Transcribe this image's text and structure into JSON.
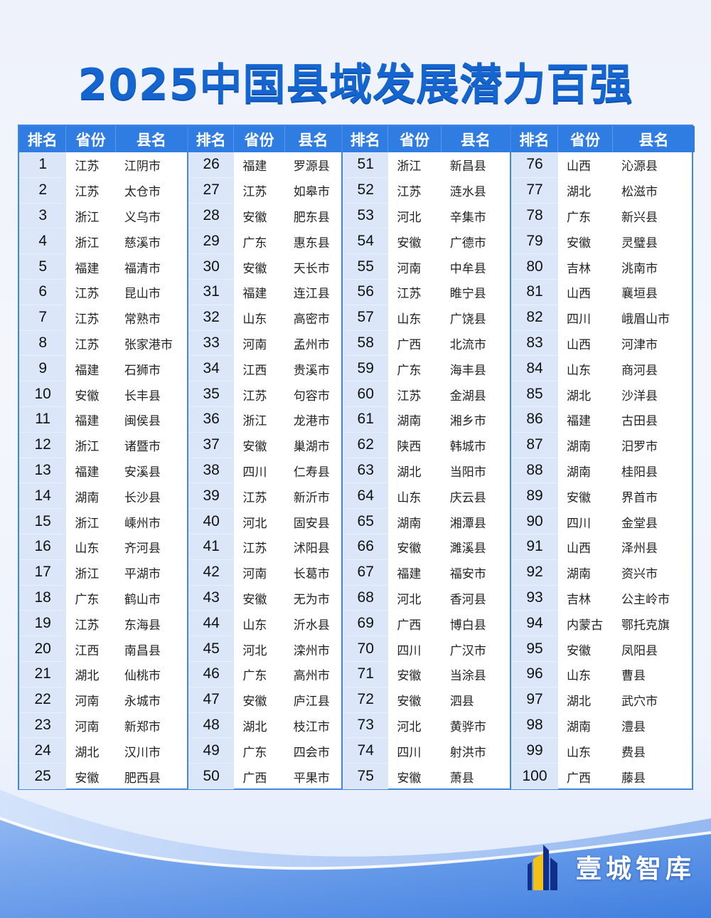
{
  "title": "2025中国县域发展潜力百强",
  "headers": {
    "rank": "排名",
    "province": "省份",
    "county": "县名"
  },
  "brand": "壹城智库",
  "colors": {
    "header_bg": "#2f7de3",
    "title": "#1565d0",
    "rank_bg": "#dbe7f9",
    "border": "#3f86e6"
  },
  "groups": [
    [
      [
        "1",
        "江苏",
        "江阴市"
      ],
      [
        "2",
        "江苏",
        "太仓市"
      ],
      [
        "3",
        "浙江",
        "义乌市"
      ],
      [
        "4",
        "浙江",
        "慈溪市"
      ],
      [
        "5",
        "福建",
        "福清市"
      ],
      [
        "6",
        "江苏",
        "昆山市"
      ],
      [
        "7",
        "江苏",
        "常熟市"
      ],
      [
        "8",
        "江苏",
        "张家港市"
      ],
      [
        "9",
        "福建",
        "石狮市"
      ],
      [
        "10",
        "安徽",
        "长丰县"
      ],
      [
        "11",
        "福建",
        "闽侯县"
      ],
      [
        "12",
        "浙江",
        "诸暨市"
      ],
      [
        "13",
        "福建",
        "安溪县"
      ],
      [
        "14",
        "湖南",
        "长沙县"
      ],
      [
        "15",
        "浙江",
        "嵊州市"
      ],
      [
        "16",
        "山东",
        "齐河县"
      ],
      [
        "17",
        "浙江",
        "平湖市"
      ],
      [
        "18",
        "广东",
        "鹤山市"
      ],
      [
        "19",
        "江苏",
        "东海县"
      ],
      [
        "20",
        "江西",
        "南昌县"
      ],
      [
        "21",
        "湖北",
        "仙桃市"
      ],
      [
        "22",
        "河南",
        "永城市"
      ],
      [
        "23",
        "河南",
        "新郑市"
      ],
      [
        "24",
        "湖北",
        "汉川市"
      ],
      [
        "25",
        "安徽",
        "肥西县"
      ]
    ],
    [
      [
        "26",
        "福建",
        "罗源县"
      ],
      [
        "27",
        "江苏",
        "如皋市"
      ],
      [
        "28",
        "安徽",
        "肥东县"
      ],
      [
        "29",
        "广东",
        "惠东县"
      ],
      [
        "30",
        "安徽",
        "天长市"
      ],
      [
        "31",
        "福建",
        "连江县"
      ],
      [
        "32",
        "山东",
        "高密市"
      ],
      [
        "33",
        "河南",
        "孟州市"
      ],
      [
        "34",
        "江西",
        "贵溪市"
      ],
      [
        "35",
        "江苏",
        "句容市"
      ],
      [
        "36",
        "浙江",
        "龙港市"
      ],
      [
        "37",
        "安徽",
        "巢湖市"
      ],
      [
        "38",
        "四川",
        "仁寿县"
      ],
      [
        "39",
        "江苏",
        "新沂市"
      ],
      [
        "40",
        "河北",
        "固安县"
      ],
      [
        "41",
        "江苏",
        "沭阳县"
      ],
      [
        "42",
        "河南",
        "长葛市"
      ],
      [
        "43",
        "安徽",
        "无为市"
      ],
      [
        "44",
        "山东",
        "沂水县"
      ],
      [
        "45",
        "河北",
        "滦州市"
      ],
      [
        "46",
        "广东",
        "高州市"
      ],
      [
        "47",
        "安徽",
        "庐江县"
      ],
      [
        "48",
        "湖北",
        "枝江市"
      ],
      [
        "49",
        "广东",
        "四会市"
      ],
      [
        "50",
        "广西",
        "平果市"
      ]
    ],
    [
      [
        "51",
        "浙江",
        "新昌县"
      ],
      [
        "52",
        "江苏",
        "涟水县"
      ],
      [
        "53",
        "河北",
        "辛集市"
      ],
      [
        "54",
        "安徽",
        "广德市"
      ],
      [
        "55",
        "河南",
        "中牟县"
      ],
      [
        "56",
        "江苏",
        "睢宁县"
      ],
      [
        "57",
        "山东",
        "广饶县"
      ],
      [
        "58",
        "广西",
        "北流市"
      ],
      [
        "59",
        "广东",
        "海丰县"
      ],
      [
        "60",
        "江苏",
        "金湖县"
      ],
      [
        "61",
        "湖南",
        "湘乡市"
      ],
      [
        "62",
        "陕西",
        "韩城市"
      ],
      [
        "63",
        "湖北",
        "当阳市"
      ],
      [
        "64",
        "山东",
        "庆云县"
      ],
      [
        "65",
        "湖南",
        "湘潭县"
      ],
      [
        "66",
        "安徽",
        "濉溪县"
      ],
      [
        "67",
        "福建",
        "福安市"
      ],
      [
        "68",
        "河北",
        "香河县"
      ],
      [
        "69",
        "广西",
        "博白县"
      ],
      [
        "70",
        "四川",
        "广汉市"
      ],
      [
        "71",
        "安徽",
        "当涂县"
      ],
      [
        "72",
        "安徽",
        "泗县"
      ],
      [
        "73",
        "河北",
        "黄骅市"
      ],
      [
        "74",
        "四川",
        "射洪市"
      ],
      [
        "75",
        "安徽",
        "萧县"
      ]
    ],
    [
      [
        "76",
        "山西",
        "沁源县"
      ],
      [
        "77",
        "湖北",
        "松滋市"
      ],
      [
        "78",
        "广东",
        "新兴县"
      ],
      [
        "79",
        "安徽",
        "灵璧县"
      ],
      [
        "80",
        "吉林",
        "洮南市"
      ],
      [
        "81",
        "山西",
        "襄垣县"
      ],
      [
        "82",
        "四川",
        "峨眉山市"
      ],
      [
        "83",
        "山西",
        "河津市"
      ],
      [
        "84",
        "山东",
        "商河县"
      ],
      [
        "85",
        "湖北",
        "沙洋县"
      ],
      [
        "86",
        "福建",
        "古田县"
      ],
      [
        "87",
        "湖南",
        "汨罗市"
      ],
      [
        "88",
        "湖南",
        "桂阳县"
      ],
      [
        "89",
        "安徽",
        "界首市"
      ],
      [
        "90",
        "四川",
        "金堂县"
      ],
      [
        "91",
        "山西",
        "泽州县"
      ],
      [
        "92",
        "湖南",
        "资兴市"
      ],
      [
        "93",
        "吉林",
        "公主岭市"
      ],
      [
        "94",
        "内蒙古",
        "鄂托克旗"
      ],
      [
        "95",
        "安徽",
        "凤阳县"
      ],
      [
        "96",
        "山东",
        "曹县"
      ],
      [
        "97",
        "湖北",
        "武穴市"
      ],
      [
        "98",
        "湖南",
        "澧县"
      ],
      [
        "99",
        "山东",
        "费县"
      ],
      [
        "100",
        "广西",
        "藤县"
      ]
    ]
  ]
}
